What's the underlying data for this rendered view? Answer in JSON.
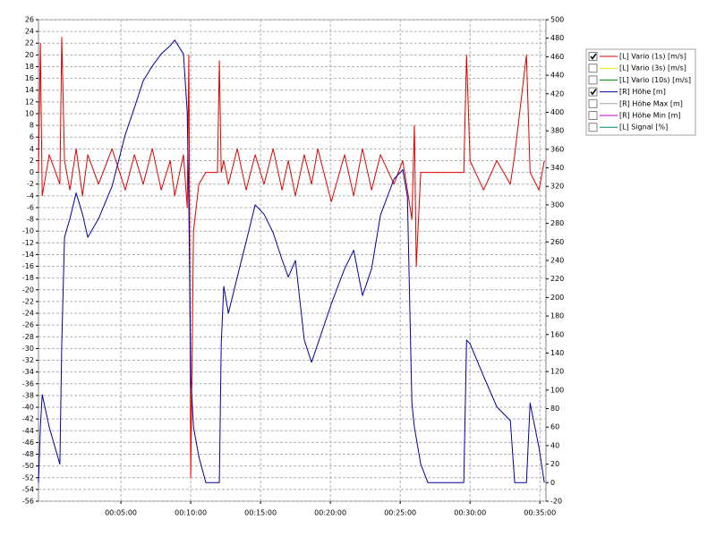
{
  "chart_data": {
    "type": "line",
    "x": [
      -54,
      -46,
      -38,
      -8,
      38,
      46,
      58,
      81,
      108,
      135,
      158,
      204,
      262,
      319,
      358,
      396,
      435,
      473,
      512,
      531,
      569,
      585,
      592,
      600,
      612,
      635,
      665,
      715,
      723,
      731,
      742,
      762,
      800,
      838,
      877,
      915,
      954,
      992,
      1019,
      1050,
      1088,
      1119,
      1146,
      1204,
      1261,
      1300,
      1338,
      1377,
      1415,
      1473,
      1511,
      1531,
      1550,
      1561,
      1569,
      1588,
      1619,
      1773,
      1785,
      1800,
      1858,
      1915,
      1973,
      1992,
      2042,
      2058,
      2096,
      2119
    ],
    "xlim": [
      -54,
      2126
    ],
    "xticks": [
      {
        "value": 300,
        "label": "00:05:00"
      },
      {
        "value": 600,
        "label": "00:10:00"
      },
      {
        "value": 900,
        "label": "00:15:00"
      },
      {
        "value": 1200,
        "label": "00:20:00"
      },
      {
        "value": 1500,
        "label": "00:25:00"
      },
      {
        "value": 1800,
        "label": "00:30:00"
      },
      {
        "value": 2100,
        "label": "00:35:00"
      }
    ],
    "ylim": [
      -56,
      26
    ],
    "yticks": [
      26,
      24,
      22,
      20,
      18,
      16,
      14,
      12,
      10,
      8,
      6,
      4,
      2,
      0,
      -2,
      -4,
      -6,
      -8,
      -10,
      -12,
      -14,
      -16,
      -18,
      -20,
      -22,
      -24,
      -26,
      -28,
      -30,
      -32,
      -34,
      -36,
      -38,
      -40,
      -42,
      -44,
      -46,
      -48,
      -50,
      -52,
      -54,
      -56
    ],
    "y2lim": [
      -20,
      500
    ],
    "y2ticks": [
      500,
      480,
      460,
      440,
      420,
      400,
      380,
      360,
      340,
      320,
      300,
      280,
      260,
      240,
      220,
      200,
      180,
      160,
      140,
      120,
      100,
      80,
      60,
      40,
      20,
      0,
      -20
    ],
    "grid": true,
    "series": [
      {
        "name": "[L] Vario (1s) [m/s]",
        "color": "#e00000",
        "checked": true,
        "values": [
          0,
          22,
          -4,
          3,
          -2,
          23,
          2,
          -3,
          4,
          -4,
          3,
          -2,
          4,
          -3,
          3,
          -2,
          4,
          -3,
          2,
          -4,
          3,
          -6,
          20,
          -52,
          -10,
          -2,
          0,
          0,
          19,
          0,
          2,
          -2,
          4,
          -3,
          3,
          -2,
          4,
          -3,
          2,
          -4,
          3,
          -2,
          4,
          -5,
          3,
          -4,
          4,
          -3,
          3,
          -2,
          2,
          -3,
          -8,
          8,
          -16,
          0,
          0,
          0,
          20,
          2,
          -3,
          2,
          -2,
          3,
          20,
          0,
          -3,
          2
        ]
      },
      {
        "name": "[L] Vario (3s) [m/s]",
        "color": "#e8e800",
        "checked": false,
        "values": [
          null,
          null,
          null,
          null,
          null,
          null,
          null,
          null,
          null,
          null,
          null,
          null,
          null,
          null,
          null,
          null,
          null,
          null,
          null,
          null,
          null,
          null,
          null,
          null,
          null,
          null,
          null,
          null,
          null,
          null,
          null,
          null,
          null,
          null,
          null,
          null,
          null,
          null,
          null,
          null,
          null,
          null,
          null,
          null,
          null,
          null,
          null,
          null,
          null,
          null,
          null,
          null,
          null,
          null,
          null,
          null,
          null,
          null,
          null,
          null,
          null,
          null,
          null,
          null,
          null,
          null,
          null,
          null
        ]
      },
      {
        "name": "[L] Vario (10s) [m/s]",
        "color": "#008000",
        "checked": false,
        "values": [
          null,
          null,
          null,
          null,
          null,
          null,
          null,
          null,
          null,
          null,
          null,
          null,
          null,
          null,
          null,
          null,
          null,
          null,
          null,
          null,
          null,
          null,
          null,
          null,
          null,
          null,
          null,
          null,
          null,
          null,
          null,
          null,
          null,
          null,
          null,
          null,
          null,
          null,
          null,
          null,
          null,
          null,
          null,
          null,
          null,
          null,
          null,
          null,
          null,
          null,
          null,
          null,
          null,
          null,
          null,
          null,
          null,
          null,
          null,
          null,
          null,
          null,
          null,
          null,
          null,
          null,
          null,
          null
        ]
      },
      {
        "name": "[R] Höhe [m]",
        "color": "#0000a0",
        "checked": true,
        "axis": "y2",
        "values": [
          0,
          60,
          95,
          60,
          20,
          150,
          265,
          285,
          313,
          290,
          265,
          285,
          320,
          376,
          405,
          434,
          450,
          463,
          472,
          478,
          463,
          400,
          300,
          115,
          60,
          28,
          0,
          0,
          0,
          150,
          212,
          183,
          222,
          260,
          300,
          290,
          270,
          241,
          222,
          240,
          154,
          130,
          150,
          193,
          231,
          251,
          202,
          231,
          289,
          328,
          338,
          309,
          86,
          60,
          48,
          20,
          0,
          0,
          154,
          150,
          115,
          82,
          67,
          0,
          0,
          86,
          38,
          0
        ]
      },
      {
        "name": "[R] Höhe Max [m]",
        "color": "#a0a0a0",
        "checked": false,
        "axis": "y2",
        "values": [
          null,
          null,
          null,
          null,
          null,
          null,
          null,
          null,
          null,
          null,
          null,
          null,
          null,
          null,
          null,
          null,
          null,
          null,
          null,
          null,
          null,
          null,
          null,
          null,
          null,
          null,
          null,
          null,
          null,
          null,
          null,
          null,
          null,
          null,
          null,
          null,
          null,
          null,
          null,
          null,
          null,
          null,
          null,
          null,
          null,
          null,
          null,
          null,
          null,
          null,
          null,
          null,
          null,
          null,
          null,
          null,
          null,
          null,
          null,
          null,
          null,
          null,
          null,
          null,
          null,
          null,
          null,
          null
        ]
      },
      {
        "name": "[R] Höhe Min [m]",
        "color": "#c000c0",
        "checked": false,
        "axis": "y2",
        "values": [
          null,
          null,
          null,
          null,
          null,
          null,
          null,
          null,
          null,
          null,
          null,
          null,
          null,
          null,
          null,
          null,
          null,
          null,
          null,
          null,
          null,
          null,
          null,
          null,
          null,
          null,
          null,
          null,
          null,
          null,
          null,
          null,
          null,
          null,
          null,
          null,
          null,
          null,
          null,
          null,
          null,
          null,
          null,
          null,
          null,
          null,
          null,
          null,
          null,
          null,
          null,
          null,
          null,
          null,
          null,
          null,
          null,
          null,
          null,
          null,
          null,
          null,
          null,
          null,
          null,
          null,
          null,
          null
        ]
      },
      {
        "name": "[L] Signal [%]",
        "color": "#008080",
        "checked": false,
        "values": [
          null,
          null,
          null,
          null,
          null,
          null,
          null,
          null,
          null,
          null,
          null,
          null,
          null,
          null,
          null,
          null,
          null,
          null,
          null,
          null,
          null,
          null,
          null,
          null,
          null,
          null,
          null,
          null,
          null,
          null,
          null,
          null,
          null,
          null,
          null,
          null,
          null,
          null,
          null,
          null,
          null,
          null,
          null,
          null,
          null,
          null,
          null,
          null,
          null,
          null,
          null,
          null,
          null,
          null,
          null,
          null,
          null,
          null,
          null,
          null,
          null,
          null,
          null,
          null,
          null,
          null,
          null,
          null
        ]
      }
    ]
  }
}
